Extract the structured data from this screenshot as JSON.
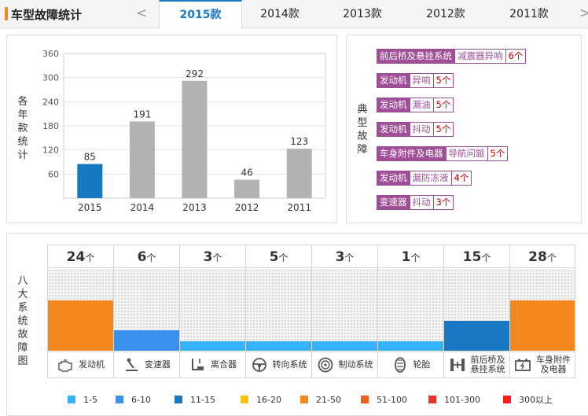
{
  "header": {
    "title": "车型故障统计",
    "years": [
      "2015款",
      "2014款",
      "2013款",
      "2012款",
      "2011款"
    ],
    "active_year": "2015款",
    "prev": "<",
    "next": ">"
  },
  "chart": {
    "side_label": "各年款统计"
  },
  "chart_data": {
    "type": "bar",
    "categories": [
      "2015",
      "2014",
      "2013",
      "2012",
      "2011"
    ],
    "values": [
      85,
      191,
      292,
      46,
      123
    ],
    "highlight_index": 0,
    "colors": {
      "highlight": "#1479c0",
      "normal": "#b3b3b3"
    },
    "yticks": [
      60,
      120,
      180,
      240,
      300,
      360
    ],
    "ylim": [
      0,
      360
    ],
    "grid": true
  },
  "faults": {
    "side_label": "典型故障",
    "items": [
      {
        "system": "前后桥及悬挂系统",
        "problem": "减震器异响",
        "count": "6个"
      },
      {
        "system": "发动机",
        "problem": "异响",
        "count": "5个"
      },
      {
        "system": "发动机",
        "problem": "漏油",
        "count": "5个"
      },
      {
        "system": "发动机",
        "problem": "抖动",
        "count": "5个"
      },
      {
        "system": "车身附件及电器",
        "problem": "导航问题",
        "count": "5个"
      },
      {
        "system": "发动机",
        "problem": "漏防冻液",
        "count": "4个"
      },
      {
        "system": "变速器",
        "problem": "抖动",
        "count": "3个"
      }
    ]
  },
  "systems": {
    "side_label": "八大系统故障图",
    "unit": "个",
    "items": [
      {
        "name": "发动机",
        "count": "24",
        "level": 0.62,
        "color": "#f5871f",
        "icon": "engine-icon"
      },
      {
        "name": "变速器",
        "count": "6",
        "level": 0.25,
        "color": "#3990ee",
        "icon": "gear-shift-icon"
      },
      {
        "name": "离合器",
        "count": "3",
        "level": 0.12,
        "color": "#36b3f7",
        "icon": "clutch-pedal-icon"
      },
      {
        "name": "转向系统",
        "count": "5",
        "level": 0.12,
        "color": "#36b3f7",
        "icon": "steering-wheel-icon"
      },
      {
        "name": "制动系统",
        "count": "3",
        "level": 0.12,
        "color": "#36b3f7",
        "icon": "brake-disc-icon"
      },
      {
        "name": "轮胎",
        "count": "1",
        "level": 0.12,
        "color": "#36b3f7",
        "icon": "tire-icon"
      },
      {
        "name": "前后桥及悬挂系统",
        "name_lines": [
          "前后桥及",
          "悬挂系统"
        ],
        "count": "15",
        "level": 0.37,
        "color": "#1878c4",
        "icon": "suspension-icon"
      },
      {
        "name": "车身附件及电器",
        "name_lines": [
          "车身附件",
          "及电器"
        ],
        "count": "28",
        "level": 0.62,
        "color": "#f5871f",
        "icon": "battery-icon"
      }
    ]
  },
  "legend": [
    {
      "label": "1-5",
      "color": "#36b3f7"
    },
    {
      "label": "6-10",
      "color": "#3990ee"
    },
    {
      "label": "11-15",
      "color": "#1878c4"
    },
    {
      "label": "16-20",
      "color": "#f9c217"
    },
    {
      "label": "21-50",
      "color": "#f5871f"
    },
    {
      "label": "51-100",
      "color": "#f0601d"
    },
    {
      "label": "101-300",
      "color": "#e8312b"
    },
    {
      "label": "300以上",
      "color": "#ff1a1a"
    }
  ]
}
